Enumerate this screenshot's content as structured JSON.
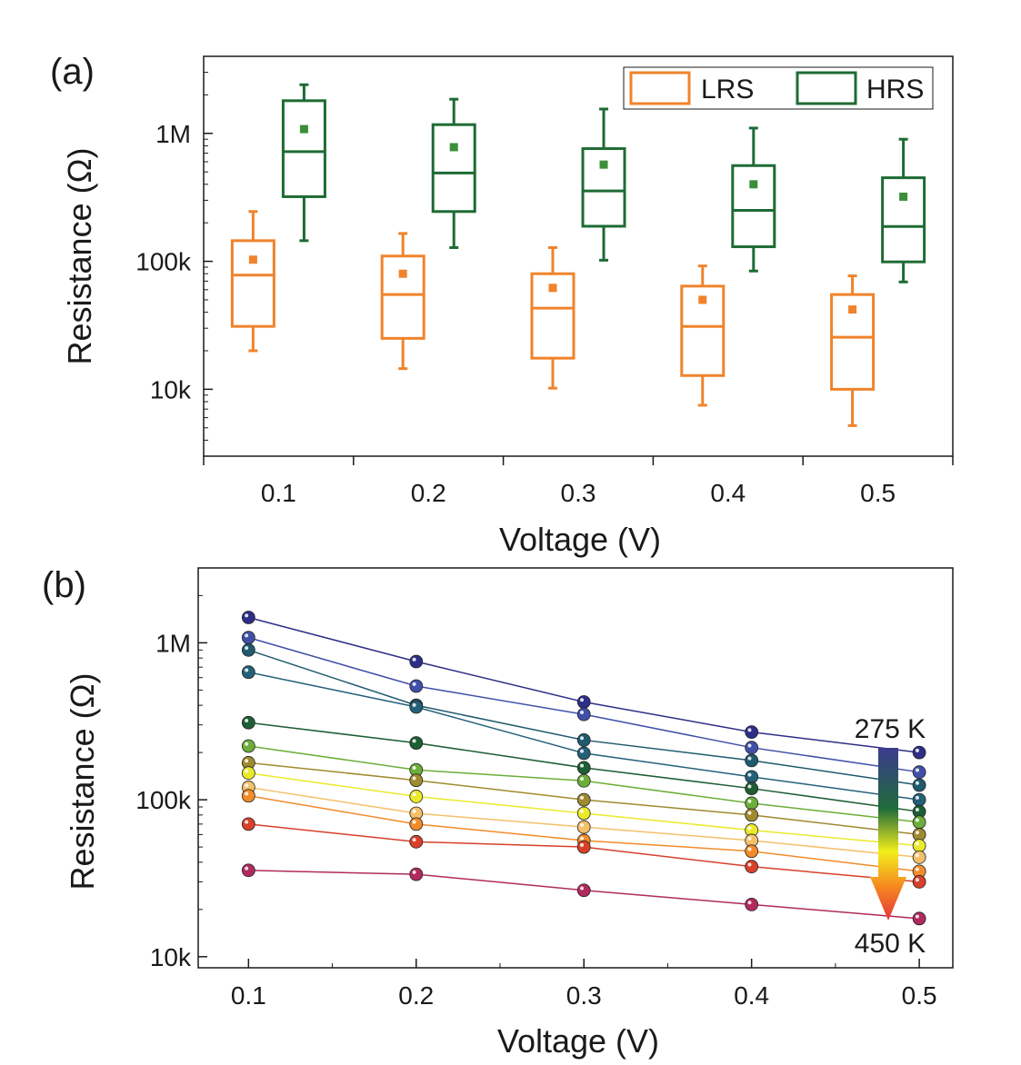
{
  "chart_data": [
    {
      "panel": "(a)",
      "type": "box",
      "xlabel": "Voltage (V)",
      "ylabel": "Resistance (Ω)",
      "yscale": "log",
      "ylim": [
        3000,
        4000000
      ],
      "yticks": [
        {
          "value": 10000,
          "label": "10k"
        },
        {
          "value": 100000,
          "label": "100k"
        },
        {
          "value": 1000000,
          "label": "1M"
        }
      ],
      "categories": [
        "0.1",
        "0.2",
        "0.3",
        "0.4",
        "0.5"
      ],
      "legend": {
        "position": "top-right",
        "entries": [
          "LRS",
          "HRS"
        ]
      },
      "colors": {
        "LRS": "#f0832b",
        "HRS": "#1e6b34",
        "HRS_mean": "#3b8f3b"
      },
      "series": [
        {
          "name": "LRS",
          "boxes": [
            {
              "min": 20000,
              "q1": 31000,
              "median": 78000,
              "q3": 145000,
              "max": 245000,
              "mean": 103000
            },
            {
              "min": 14500,
              "q1": 25000,
              "median": 55000,
              "q3": 110000,
              "max": 165000,
              "mean": 80000
            },
            {
              "min": 10200,
              "q1": 17500,
              "median": 43000,
              "q3": 80000,
              "max": 128000,
              "mean": 62000
            },
            {
              "min": 7500,
              "q1": 12800,
              "median": 31000,
              "q3": 64000,
              "max": 92000,
              "mean": 50000
            },
            {
              "min": 5200,
              "q1": 10000,
              "median": 25500,
              "q3": 55000,
              "max": 77000,
              "mean": 42000
            }
          ]
        },
        {
          "name": "HRS",
          "boxes": [
            {
              "min": 145000,
              "q1": 320000,
              "median": 720000,
              "q3": 1800000,
              "max": 2400000,
              "mean": 1080000
            },
            {
              "min": 128000,
              "q1": 245000,
              "median": 490000,
              "q3": 1170000,
              "max": 1850000,
              "mean": 780000
            },
            {
              "min": 102000,
              "q1": 188000,
              "median": 355000,
              "q3": 760000,
              "max": 1550000,
              "mean": 570000
            },
            {
              "min": 84000,
              "q1": 130000,
              "median": 250000,
              "q3": 560000,
              "max": 1100000,
              "mean": 400000
            },
            {
              "min": 69000,
              "q1": 99000,
              "median": 187000,
              "q3": 450000,
              "max": 900000,
              "mean": 320000
            }
          ]
        }
      ]
    },
    {
      "panel": "(b)",
      "type": "line",
      "xlabel": "Voltage (V)",
      "ylabel": "Resistance (Ω)",
      "yscale": "log",
      "ylim": [
        8500,
        3000000
      ],
      "xlim": [
        0.07,
        0.52
      ],
      "yticks": [
        {
          "value": 10000,
          "label": "10k"
        },
        {
          "value": 100000,
          "label": "100k"
        },
        {
          "value": 1000000,
          "label": "1M"
        }
      ],
      "xticks": [
        "0.1",
        "0.2",
        "0.3",
        "0.4",
        "0.5"
      ],
      "x": [
        0.1,
        0.2,
        0.3,
        0.4,
        0.5
      ],
      "colorbar": {
        "top_label": "275 K",
        "bottom_label": "450 K",
        "colors": [
          "#3b3b8f",
          "#1f6b3a",
          "#f2ee1c",
          "#f58a1f",
          "#e6343c"
        ]
      },
      "series": [
        {
          "color": "#2e2e88",
          "values": [
            1450000,
            760000,
            420000,
            270000,
            200000
          ]
        },
        {
          "color": "#4050a8",
          "values": [
            1080000,
            530000,
            350000,
            215000,
            150000
          ]
        },
        {
          "color": "#1f5a6e",
          "values": [
            900000,
            400000,
            240000,
            178000,
            124000
          ]
        },
        {
          "color": "#24607a",
          "values": [
            650000,
            390000,
            198000,
            140000,
            100000
          ]
        },
        {
          "color": "#1e5e34",
          "values": [
            310000,
            230000,
            160000,
            118000,
            84000
          ]
        },
        {
          "color": "#6cae3a",
          "values": [
            220000,
            155000,
            132000,
            95000,
            72000
          ]
        },
        {
          "color": "#a08a30",
          "values": [
            172000,
            133000,
            100000,
            80000,
            60000
          ]
        },
        {
          "color": "#eaea2a",
          "values": [
            148000,
            105000,
            82000,
            64000,
            51000
          ]
        },
        {
          "color": "#f4c06a",
          "values": [
            120000,
            82000,
            67000,
            55000,
            43000
          ]
        },
        {
          "color": "#f28c2a",
          "values": [
            106000,
            70000,
            55000,
            47000,
            35000
          ]
        },
        {
          "color": "#d8402a",
          "values": [
            70000,
            54000,
            50000,
            37500,
            30000
          ]
        },
        {
          "color": "#b02a5e",
          "values": [
            35500,
            33500,
            26500,
            21500,
            17500
          ]
        }
      ]
    }
  ]
}
